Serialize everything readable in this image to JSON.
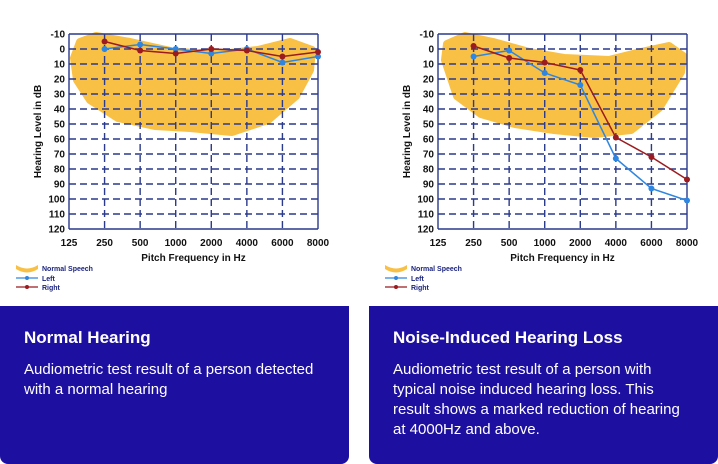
{
  "colors": {
    "speech": "#f8c044",
    "left": "#2f86e0",
    "right": "#9b1b1f",
    "grid": "#2a3a8c",
    "caption_bg": "#1d0fa0"
  },
  "panels": [
    {
      "caption": {
        "title": "Normal Hearing",
        "description": "Audiometric test result of a person detected with a normal hearing"
      }
    },
    {
      "caption": {
        "title": "Noise-Induced Hearing Loss",
        "description": "Audiometric test result of a person with typical noise induced hearing loss.  This result shows a marked reduction of hearing at 4000Hz and above."
      }
    }
  ],
  "chart_data": [
    {
      "type": "line",
      "xlabel": "Pitch Frequency in Hz",
      "ylabel": "Hearing Level in dB",
      "categories": [
        "125",
        "250",
        "500",
        "1000",
        "2000",
        "4000",
        "6000",
        "8000"
      ],
      "y_ticks": [
        "-10",
        "0",
        "10",
        "20",
        "30",
        "40",
        "50",
        "60",
        "70",
        "80",
        "90",
        "100",
        "110",
        "120"
      ],
      "ylim": [
        -10,
        120
      ],
      "y_inverted": true,
      "grid": true,
      "legend_position": "bottom-left",
      "legend": [
        "Normal Speech",
        "Left",
        "Right"
      ],
      "series": [
        {
          "name": "Left",
          "x": [
            "250",
            "500",
            "1000",
            "2000",
            "4000",
            "6000",
            "8000"
          ],
          "values": [
            0,
            -3,
            0,
            3,
            0,
            9,
            5
          ]
        },
        {
          "name": "Right",
          "x": [
            "250",
            "500",
            "1000",
            "2000",
            "4000",
            "6000",
            "8000"
          ],
          "values": [
            -5,
            1,
            3,
            0,
            1,
            5,
            2
          ]
        }
      ]
    },
    {
      "type": "line",
      "xlabel": "Pitch Frequency in Hz",
      "ylabel": "Hearing Level in dB",
      "categories": [
        "125",
        "250",
        "500",
        "1000",
        "2000",
        "4000",
        "6000",
        "8000"
      ],
      "y_ticks": [
        "-10",
        "0",
        "10",
        "20",
        "30",
        "40",
        "50",
        "60",
        "70",
        "80",
        "90",
        "100",
        "110",
        "120"
      ],
      "ylim": [
        -10,
        120
      ],
      "y_inverted": true,
      "grid": true,
      "legend_position": "bottom-left",
      "legend": [
        "Normal Speech",
        "Left",
        "Right"
      ],
      "series": [
        {
          "name": "Left",
          "x": [
            "250",
            "500",
            "1000",
            "2000",
            "4000",
            "6000",
            "8000"
          ],
          "values": [
            5,
            1,
            16,
            24,
            73,
            93,
            101
          ]
        },
        {
          "name": "Right",
          "x": [
            "250",
            "500",
            "1000",
            "2000",
            "4000",
            "6000",
            "8000"
          ],
          "values": [
            -2,
            6,
            9,
            14,
            59,
            72,
            87
          ]
        }
      ]
    }
  ]
}
